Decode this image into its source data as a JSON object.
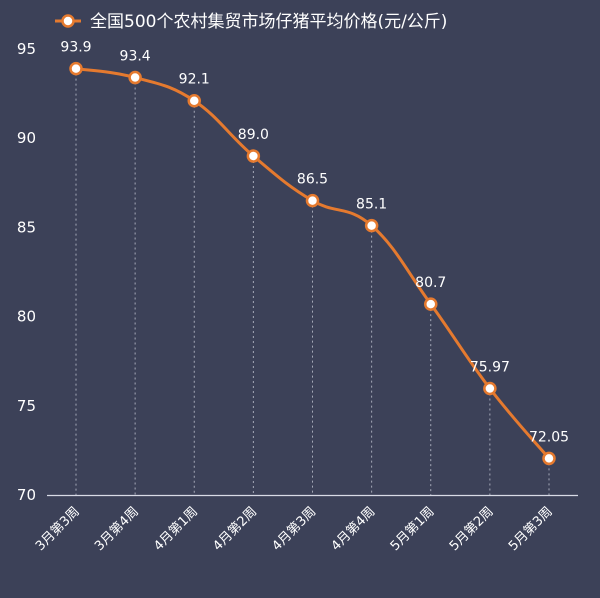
{
  "chart_data": {
    "type": "line",
    "title": "",
    "xlabel": "",
    "ylabel": "",
    "categories": [
      "3月第3周",
      "3月第4周",
      "4月第1周",
      "4月第2周",
      "4月第3周",
      "4月第4周",
      "5月第1周",
      "5月第2周",
      "5月第3周"
    ],
    "series": [
      {
        "name": "全国500个农村集贸市场仔猪平均价格(元/公斤)",
        "values": [
          93.9,
          93.4,
          92.1,
          89.0,
          86.5,
          85.1,
          80.7,
          75.97,
          72.05
        ],
        "labels": [
          "93.9",
          "93.4",
          "92.1",
          "89.0",
          "86.5",
          "85.1",
          "80.7",
          "75.97",
          "72.05"
        ]
      }
    ],
    "ylim": [
      70,
      95
    ],
    "yticks": [
      70,
      75,
      80,
      85,
      90,
      95
    ],
    "grid": "vertical dashed lines at each point",
    "legend": "top",
    "colors": {
      "background": "#3c4158",
      "line": "#e57a2f",
      "marker_fill": "#ffffff",
      "text": "#ffffff",
      "axis": "#d8dbe6"
    }
  }
}
